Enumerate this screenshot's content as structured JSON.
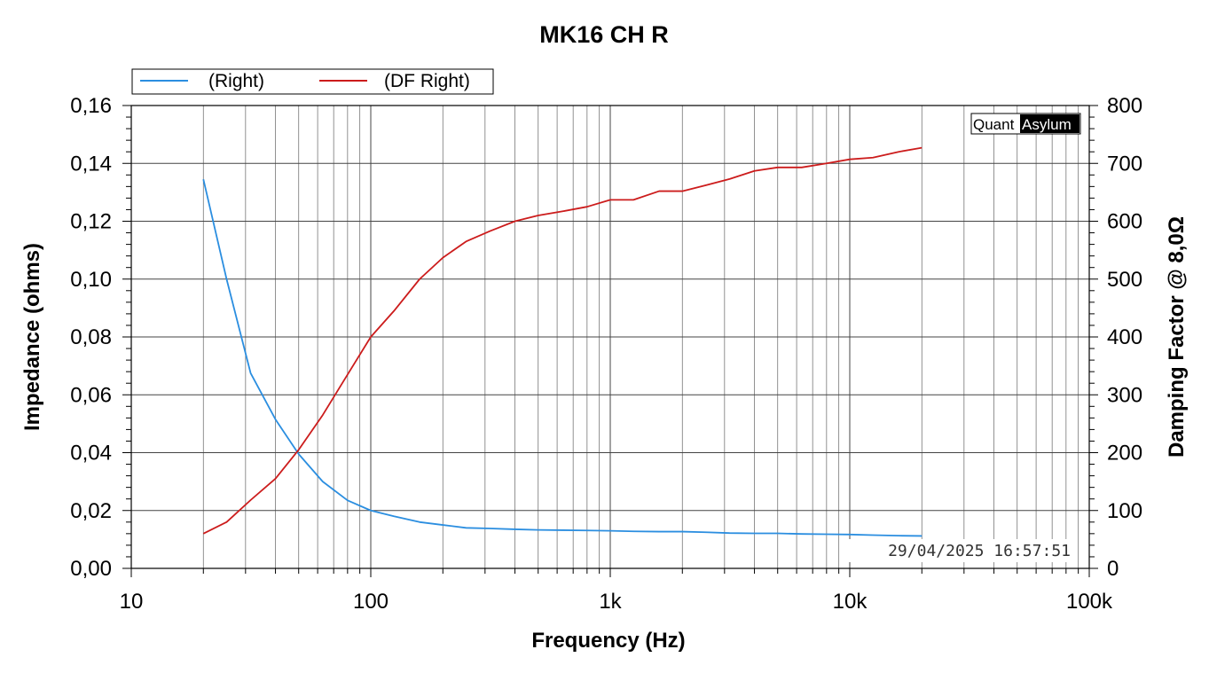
{
  "chart_data": {
    "type": "line",
    "title": "MK16 CH R",
    "xlabel": "Frequency (Hz)",
    "ylabel_left": "Impedance (ohms)",
    "ylabel_right": "Damping Factor @ 8,0Ω",
    "x_scale": "log",
    "xlim": [
      10,
      100000
    ],
    "ylim_left": [
      0,
      0.16
    ],
    "ylim_right": [
      0,
      800
    ],
    "x_ticks": [
      {
        "value": 10,
        "label": "10"
      },
      {
        "value": 100,
        "label": "100"
      },
      {
        "value": 1000,
        "label": "1k"
      },
      {
        "value": 10000,
        "label": "10k"
      },
      {
        "value": 100000,
        "label": "100k"
      }
    ],
    "y_ticks_left": [
      {
        "value": 0,
        "label": "0,00"
      },
      {
        "value": 0.02,
        "label": "0,02"
      },
      {
        "value": 0.04,
        "label": "0,04"
      },
      {
        "value": 0.06,
        "label": "0,06"
      },
      {
        "value": 0.08,
        "label": "0,08"
      },
      {
        "value": 0.1,
        "label": "0,10"
      },
      {
        "value": 0.12,
        "label": "0,12"
      },
      {
        "value": 0.14,
        "label": "0,14"
      },
      {
        "value": 0.16,
        "label": "0,16"
      }
    ],
    "y_ticks_right": [
      {
        "value": 0,
        "label": "0"
      },
      {
        "value": 100,
        "label": "100"
      },
      {
        "value": 200,
        "label": "200"
      },
      {
        "value": 300,
        "label": "300"
      },
      {
        "value": 400,
        "label": "400"
      },
      {
        "value": 500,
        "label": "500"
      },
      {
        "value": 600,
        "label": "600"
      },
      {
        "value": 700,
        "label": "700"
      },
      {
        "value": 800,
        "label": "800"
      }
    ],
    "grid": true,
    "legend_position": "top-left",
    "series": [
      {
        "name": "(Right)",
        "axis": "left",
        "color": "#2b8ee0",
        "x": [
          20,
          25,
          31.5,
          40,
          50,
          63,
          80,
          100,
          125,
          160,
          200,
          250,
          315,
          400,
          500,
          630,
          800,
          1000,
          1250,
          1600,
          2000,
          2500,
          3150,
          4000,
          5000,
          6300,
          8000,
          10000,
          12500,
          16000,
          20000
        ],
        "y": [
          0.1345,
          0.1,
          0.0675,
          0.0515,
          0.0395,
          0.03,
          0.0235,
          0.02,
          0.018,
          0.016,
          0.015,
          0.014,
          0.0138,
          0.0135,
          0.0133,
          0.0132,
          0.0131,
          0.013,
          0.0128,
          0.0127,
          0.0127,
          0.0125,
          0.0122,
          0.0121,
          0.0121,
          0.0119,
          0.0118,
          0.0117,
          0.0115,
          0.0113,
          0.0112
        ]
      },
      {
        "name": "(DF Right)",
        "axis": "right",
        "color": "#cc1c1c",
        "x": [
          20,
          25,
          31.5,
          40,
          50,
          63,
          80,
          100,
          125,
          160,
          200,
          250,
          315,
          400,
          500,
          630,
          800,
          1000,
          1250,
          1600,
          2000,
          2500,
          3150,
          4000,
          5000,
          6300,
          8000,
          10000,
          12500,
          16000,
          20000
        ],
        "y": [
          60,
          80,
          118,
          155,
          205,
          265,
          335,
          400,
          445,
          500,
          537,
          565,
          583,
          600,
          610,
          617,
          625,
          637,
          637,
          652,
          652,
          662,
          673,
          687,
          693,
          693,
          700,
          707,
          710,
          720,
          727
        ]
      }
    ],
    "annotations": {
      "timestamp": "29/04/2025 16:57:51",
      "logo_left": "Quant",
      "logo_right": "Asylum"
    }
  }
}
